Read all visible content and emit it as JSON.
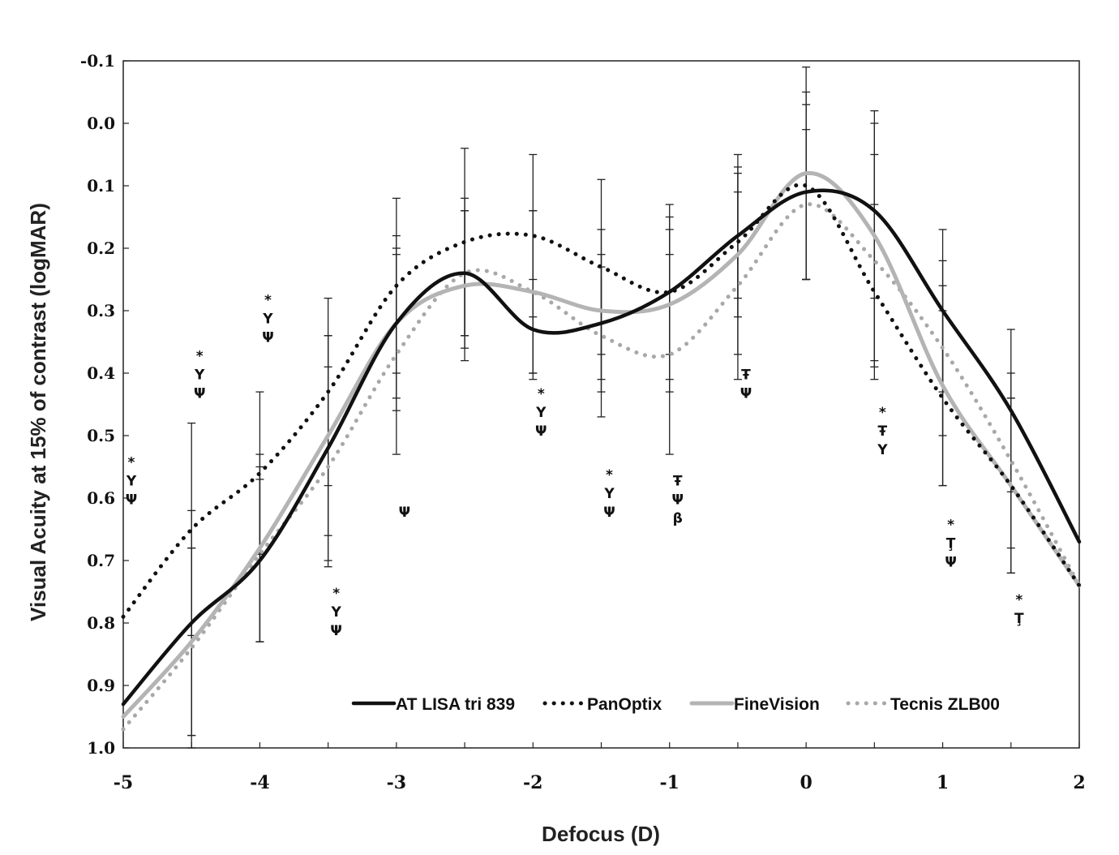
{
  "chart_data": {
    "type": "line",
    "xlabel": "Defocus (D)",
    "ylabel": "Visual Acuity at 15% of contrast (logMAR)",
    "xlim": [
      -5,
      2
    ],
    "ylim": [
      -0.1,
      1.0
    ],
    "y_inverted": true,
    "grid": false,
    "legend_position": "bottom",
    "x_ticks": [
      "-5",
      "-4.5",
      "-4",
      "-3.5",
      "-3",
      "-2.5",
      "-2",
      "-1.5",
      "-1",
      "-0.5",
      "0",
      "0.5",
      "1",
      "1.5",
      "2"
    ],
    "x_tick_labels": [
      "-5",
      "-4",
      "-3",
      "-2",
      "-1",
      "0",
      "1",
      "2"
    ],
    "y_tick_labels": [
      "-0.1",
      "0.0",
      "0.1",
      "0.2",
      "0.3",
      "0.4",
      "0.5",
      "0.6",
      "0.7",
      "0.8",
      "0.9",
      "1.0"
    ],
    "series": [
      {
        "name": "AT LISA tri 839",
        "style": "solid",
        "color": "#111111",
        "x": [
          -5,
          -4.5,
          -4,
          -3.5,
          -3,
          -2.5,
          -2,
          -1.5,
          -1,
          -0.5,
          0,
          0.5,
          1,
          1.5,
          2
        ],
        "y": [
          0.93,
          0.8,
          0.7,
          0.52,
          0.32,
          0.24,
          0.33,
          0.32,
          0.27,
          0.18,
          0.11,
          0.14,
          0.3,
          0.46,
          0.67
        ],
        "error": [
          null,
          0.18,
          0.13,
          0.18,
          0.12,
          0.1,
          0.08,
          0.09,
          0.1,
          0.1,
          0.14,
          0.14,
          0.13,
          0.13,
          null
        ]
      },
      {
        "name": "PanOptix",
        "style": "dotted",
        "color": "#111111",
        "x": [
          -5,
          -4.5,
          -4,
          -3.5,
          -3,
          -2.5,
          -2,
          -1.5,
          -1,
          -0.5,
          0,
          0.5,
          1,
          1.5,
          2
        ],
        "y": [
          0.79,
          0.65,
          0.56,
          0.43,
          0.26,
          0.19,
          0.18,
          0.23,
          0.27,
          0.19,
          0.1,
          0.27,
          0.44,
          0.58,
          0.74
        ],
        "error": [
          null,
          0.17,
          0.13,
          0.15,
          0.14,
          0.15,
          0.13,
          0.14,
          0.14,
          0.12,
          0.15,
          0.14,
          0.14,
          0.14,
          null
        ]
      },
      {
        "name": "FineVision",
        "style": "solid",
        "color": "#b4b4b4",
        "x": [
          -5,
          -4.5,
          -4,
          -3.5,
          -3,
          -2.5,
          -2,
          -1.5,
          -1,
          -0.5,
          0,
          0.5,
          1,
          1.5,
          2
        ],
        "y": [
          0.95,
          0.83,
          0.68,
          0.5,
          0.32,
          0.26,
          0.27,
          0.3,
          0.29,
          0.21,
          0.08,
          0.18,
          0.42,
          0.58,
          0.74
        ],
        "error": [
          null,
          0.15,
          0.15,
          0.16,
          0.14,
          0.12,
          0.13,
          0.13,
          0.14,
          0.16,
          0.17,
          0.2,
          0.16,
          0.14,
          null
        ]
      },
      {
        "name": "Tecnis ZLB00",
        "style": "dotted",
        "color": "#a8a8a8",
        "x": [
          -5,
          -4.5,
          -4,
          -3.5,
          -3,
          -2.5,
          -2,
          -1.5,
          -1,
          -0.5,
          0,
          0.5,
          1,
          1.5,
          2
        ],
        "y": [
          0.97,
          0.84,
          0.69,
          0.55,
          0.37,
          0.24,
          0.27,
          0.34,
          0.37,
          0.26,
          0.13,
          0.22,
          0.36,
          0.54,
          0.74
        ],
        "error": [
          null,
          0.16,
          0.14,
          0.16,
          0.16,
          0.12,
          0.13,
          0.13,
          0.16,
          0.15,
          0.12,
          0.17,
          0.14,
          0.14,
          null
        ]
      }
    ],
    "significance_marks": [
      {
        "x": -5,
        "y": 0.55,
        "symbols": [
          "*",
          "Υ",
          "Ψ"
        ]
      },
      {
        "x": -4.5,
        "y": 0.38,
        "symbols": [
          "*",
          "Υ",
          "Ψ"
        ]
      },
      {
        "x": -4,
        "y": 0.29,
        "symbols": [
          "*",
          "Υ",
          "Ψ"
        ]
      },
      {
        "x": -3.5,
        "y": 0.76,
        "symbols": [
          "*",
          "Υ",
          "Ψ"
        ]
      },
      {
        "x": -3,
        "y": 0.63,
        "symbols": [
          "Ψ"
        ]
      },
      {
        "x": -2,
        "y": 0.44,
        "symbols": [
          "*",
          "Υ",
          "Ψ"
        ]
      },
      {
        "x": -1.5,
        "y": 0.57,
        "symbols": [
          "*",
          "Υ",
          "Ψ"
        ]
      },
      {
        "x": -1,
        "y": 0.58,
        "symbols": [
          "Ŧ",
          "Ψ",
          "β"
        ]
      },
      {
        "x": -0.5,
        "y": 0.41,
        "symbols": [
          "Ŧ",
          "Ψ"
        ]
      },
      {
        "x": 0.5,
        "y": 0.47,
        "symbols": [
          "*",
          "Ŧ",
          "Υ"
        ]
      },
      {
        "x": 1,
        "y": 0.65,
        "symbols": [
          "*",
          "Ţ",
          "Ψ"
        ]
      },
      {
        "x": 1.5,
        "y": 0.77,
        "symbols": [
          "*",
          "Ţ"
        ]
      }
    ]
  }
}
